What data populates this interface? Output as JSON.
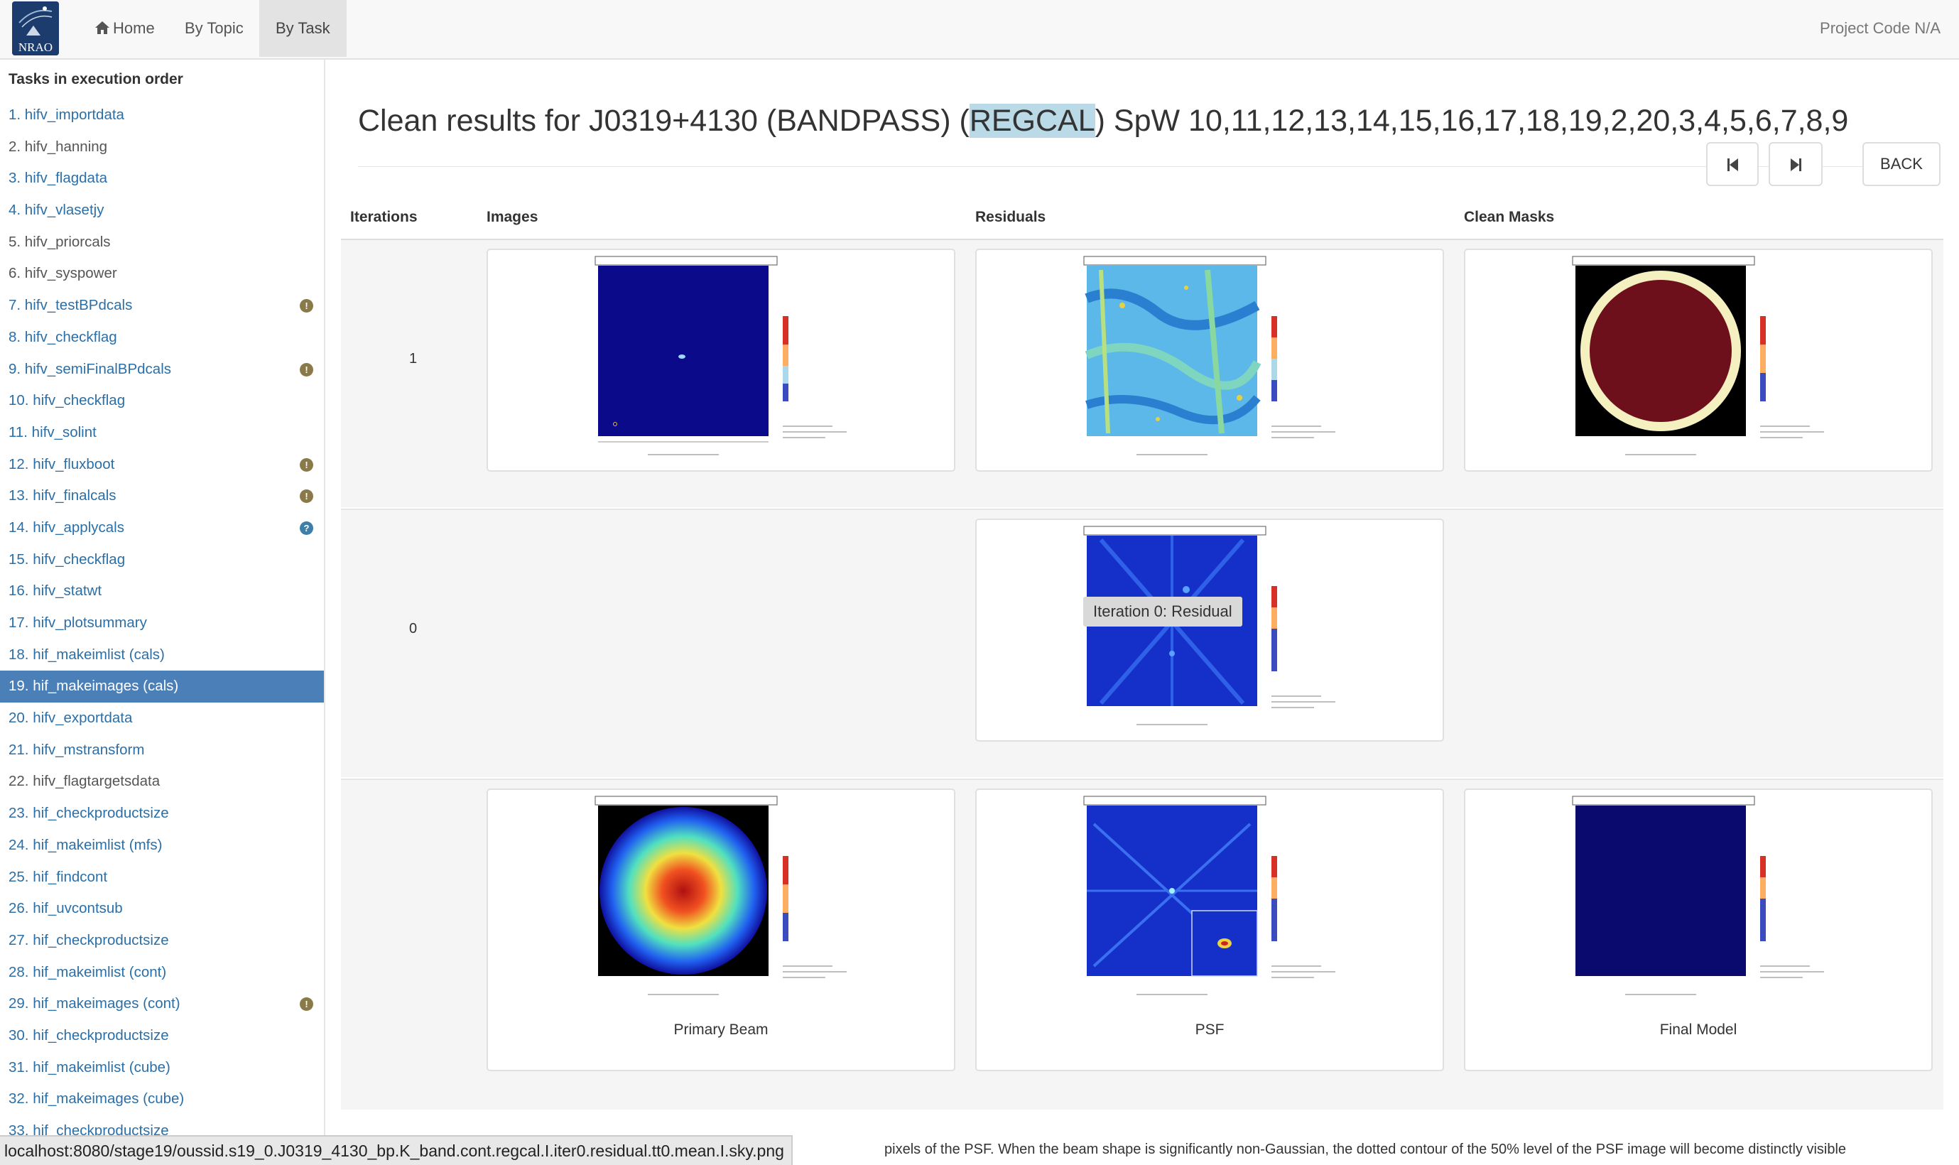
{
  "navbar": {
    "logo_text": "NRAO",
    "home": "Home",
    "by_topic": "By Topic",
    "by_task": "By Task",
    "project_code": "Project Code N/A"
  },
  "sidebar": {
    "heading": "Tasks in execution order",
    "active_index": 18,
    "items": [
      {
        "label": "1. hifv_importdata",
        "link": true,
        "badge": ""
      },
      {
        "label": "2. hifv_hanning",
        "link": false,
        "badge": ""
      },
      {
        "label": "3. hifv_flagdata",
        "link": true,
        "badge": ""
      },
      {
        "label": "4. hifv_vlasetjy",
        "link": true,
        "badge": ""
      },
      {
        "label": "5. hifv_priorcals",
        "link": false,
        "badge": ""
      },
      {
        "label": "6. hifv_syspower",
        "link": false,
        "badge": ""
      },
      {
        "label": "7. hifv_testBPdcals",
        "link": true,
        "badge": "warning"
      },
      {
        "label": "8. hifv_checkflag",
        "link": true,
        "badge": ""
      },
      {
        "label": "9. hifv_semiFinalBPdcals",
        "link": true,
        "badge": "warning"
      },
      {
        "label": "10. hifv_checkflag",
        "link": true,
        "badge": ""
      },
      {
        "label": "11. hifv_solint",
        "link": true,
        "badge": ""
      },
      {
        "label": "12. hifv_fluxboot",
        "link": true,
        "badge": "warning"
      },
      {
        "label": "13. hifv_finalcals",
        "link": true,
        "badge": "warning"
      },
      {
        "label": "14. hifv_applycals",
        "link": true,
        "badge": "question"
      },
      {
        "label": "15. hifv_checkflag",
        "link": true,
        "badge": ""
      },
      {
        "label": "16. hifv_statwt",
        "link": true,
        "badge": ""
      },
      {
        "label": "17. hifv_plotsummary",
        "link": true,
        "badge": ""
      },
      {
        "label": "18. hif_makeimlist (cals)",
        "link": true,
        "badge": ""
      },
      {
        "label": "19. hif_makeimages (cals)",
        "link": true,
        "badge": ""
      },
      {
        "label": "20. hifv_exportdata",
        "link": true,
        "badge": ""
      },
      {
        "label": "21. hifv_mstransform",
        "link": true,
        "badge": ""
      },
      {
        "label": "22. hifv_flagtargetsdata",
        "link": false,
        "badge": ""
      },
      {
        "label": "23. hif_checkproductsize",
        "link": true,
        "badge": ""
      },
      {
        "label": "24. hif_makeimlist (mfs)",
        "link": true,
        "badge": ""
      },
      {
        "label": "25. hif_findcont",
        "link": true,
        "badge": ""
      },
      {
        "label": "26. hif_uvcontsub",
        "link": true,
        "badge": ""
      },
      {
        "label": "27. hif_checkproductsize",
        "link": true,
        "badge": ""
      },
      {
        "label": "28. hif_makeimlist (cont)",
        "link": true,
        "badge": ""
      },
      {
        "label": "29. hif_makeimages (cont)",
        "link": true,
        "badge": "warning"
      },
      {
        "label": "30. hif_checkproductsize",
        "link": true,
        "badge": ""
      },
      {
        "label": "31. hif_makeimlist (cube)",
        "link": true,
        "badge": ""
      },
      {
        "label": "32. hif_makeimages (cube)",
        "link": true,
        "badge": ""
      },
      {
        "label": "33. hif_checkproductsize",
        "link": true,
        "badge": ""
      }
    ]
  },
  "main": {
    "title_pre": "Clean results for J0319+4130 (BANDPASS) (",
    "title_hl": "REGCAL",
    "title_post": ") SpW 10,11,12,13,14,15,16,17,18,19,2,20,3,4,5,6,7,8,9",
    "back_label": "BACK",
    "columns": [
      "Iterations",
      "Images",
      "Residuals",
      "Clean Masks"
    ],
    "rows": [
      {
        "iteration": "1"
      },
      {
        "iteration": "0",
        "tooltip": "Iteration 0: Residual"
      },
      {
        "captions": [
          "Primary Beam",
          "PSF",
          "Final Model"
        ]
      }
    ],
    "status_url": "localhost:8080/stage19/oussid.s19_0.J0319_4130_bp.K_band.cont.regcal.I.iter0.residual.tt0.mean.I.sky.png",
    "description_fragment": "pixels of the PSF. When the beam shape is significantly non-Gaussian, the dotted contour of the 50% level of the PSF image will become distinctly visible"
  },
  "colors": {
    "active_task": "#4a7fb8",
    "link": "#2a6fa8",
    "warning_badge": "#8a7a4a",
    "question_badge": "#3d7fa8",
    "highlight": "#b9dae6"
  }
}
